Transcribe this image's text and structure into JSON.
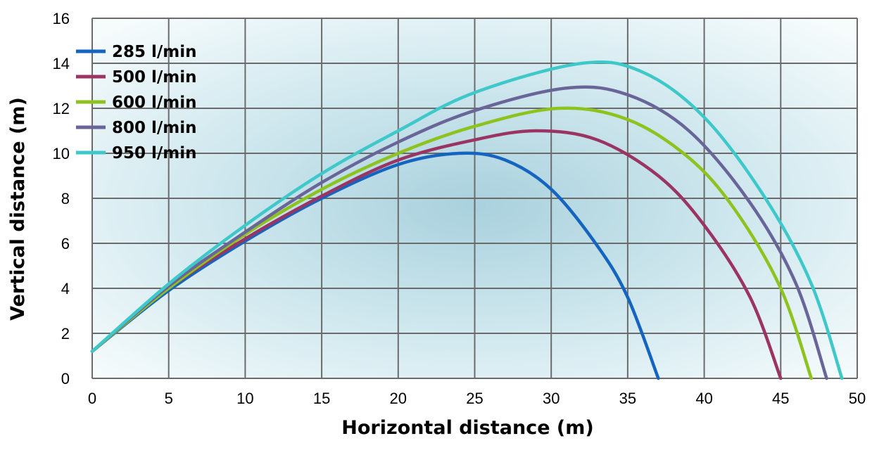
{
  "chart_data": {
    "type": "line",
    "xlabel": "Horizontal distance (m)",
    "ylabel": "Vertical distance (m)",
    "xlim": [
      0,
      50
    ],
    "ylim": [
      0,
      16
    ],
    "xticks": [
      0,
      5,
      10,
      15,
      20,
      25,
      30,
      35,
      40,
      45,
      50
    ],
    "yticks": [
      0,
      2,
      4,
      6,
      8,
      10,
      12,
      14,
      16
    ],
    "grid": true,
    "legend_position": "top-left",
    "series": [
      {
        "name": "285 l/min",
        "color": "#1565c0",
        "x": [
          0,
          5,
          10,
          15,
          20,
          24,
          27,
          30,
          33,
          35,
          37
        ],
        "y": [
          1.2,
          3.9,
          6.1,
          8.0,
          9.5,
          10.0,
          9.7,
          8.4,
          5.9,
          3.6,
          0
        ]
      },
      {
        "name": "500 l/min",
        "color": "#9a3463",
        "x": [
          0,
          5,
          10,
          15,
          20,
          25,
          29,
          33,
          37,
          40,
          43,
          45
        ],
        "y": [
          1.2,
          4.0,
          6.2,
          8.1,
          9.7,
          10.6,
          11.0,
          10.6,
          9.0,
          6.8,
          3.6,
          0
        ]
      },
      {
        "name": "600 l/min",
        "color": "#8dc21f",
        "x": [
          0,
          5,
          10,
          15,
          20,
          25,
          30.5,
          35,
          39,
          42,
          45,
          47
        ],
        "y": [
          1.2,
          4.0,
          6.4,
          8.4,
          10.0,
          11.2,
          12.0,
          11.5,
          9.8,
          7.5,
          4.0,
          0
        ]
      },
      {
        "name": "800 l/min",
        "color": "#6a6599",
        "x": [
          0,
          5,
          10,
          15,
          20,
          25,
          31,
          35,
          39,
          43,
          46,
          48
        ],
        "y": [
          1.2,
          4.1,
          6.5,
          8.7,
          10.5,
          11.9,
          12.9,
          12.6,
          11.0,
          7.8,
          4.2,
          0
        ]
      },
      {
        "name": "950 l/min",
        "color": "#3fc8c9",
        "x": [
          0,
          5,
          10,
          15,
          20,
          25,
          32,
          36,
          40,
          44,
          47,
          49
        ],
        "y": [
          1.2,
          4.2,
          6.8,
          9.1,
          11.0,
          12.7,
          14.0,
          13.6,
          11.6,
          8.0,
          4.2,
          0
        ]
      }
    ]
  }
}
